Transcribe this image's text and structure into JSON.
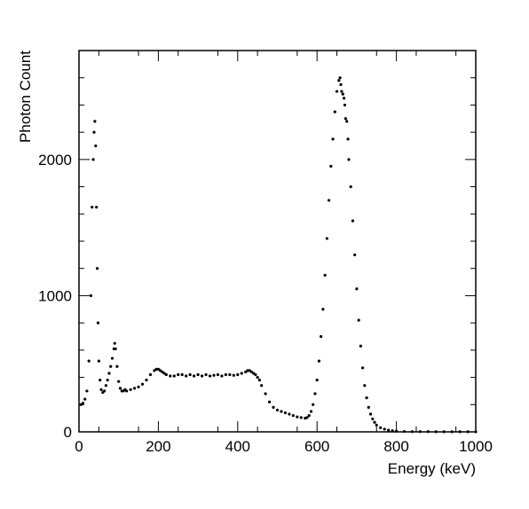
{
  "chart_data": {
    "type": "scatter",
    "title": "",
    "xlabel": "Energy (keV)",
    "ylabel": "Photon Count",
    "xlim": [
      0,
      1000
    ],
    "ylim": [
      0,
      2800
    ],
    "x_ticks": [
      0,
      200,
      400,
      600,
      800,
      1000
    ],
    "x_tick_labels": [
      "0",
      "200",
      "400",
      "600",
      "800",
      "1000"
    ],
    "y_ticks": [
      0,
      1000,
      2000
    ],
    "y_tick_labels": [
      "0",
      "1000",
      "2000"
    ],
    "grid": false,
    "legend": "none",
    "marker_color": "#000000",
    "series": [
      {
        "x": [
          5,
          10,
          15,
          20,
          25,
          30,
          33,
          36,
          38,
          40,
          42,
          44,
          46,
          48,
          50,
          53,
          56,
          60,
          64,
          68,
          72,
          76,
          80,
          84,
          88,
          90,
          92,
          96,
          100,
          104,
          108,
          112,
          116,
          120,
          130,
          140,
          150,
          160,
          170,
          180,
          190,
          195,
          200,
          205,
          210,
          215,
          220,
          230,
          240,
          250,
          260,
          270,
          280,
          290,
          300,
          310,
          320,
          330,
          340,
          350,
          360,
          370,
          380,
          390,
          400,
          410,
          420,
          425,
          430,
          435,
          440,
          445,
          450,
          455,
          460,
          470,
          480,
          490,
          500,
          510,
          520,
          530,
          540,
          550,
          560,
          570,
          575,
          580,
          585,
          590,
          595,
          600,
          605,
          610,
          615,
          620,
          625,
          630,
          635,
          640,
          645,
          650,
          655,
          658,
          660,
          662,
          665,
          668,
          670,
          672,
          675,
          678,
          680,
          685,
          690,
          695,
          700,
          705,
          710,
          715,
          720,
          725,
          730,
          735,
          740,
          745,
          750,
          760,
          770,
          780,
          790,
          800,
          820,
          840,
          860,
          880,
          900,
          920,
          940,
          960,
          980,
          1000
        ],
        "y": [
          200,
          210,
          240,
          300,
          520,
          1000,
          1650,
          2000,
          2200,
          2280,
          2100,
          1650,
          1200,
          800,
          520,
          380,
          310,
          290,
          300,
          340,
          380,
          430,
          480,
          540,
          610,
          650,
          610,
          480,
          370,
          320,
          300,
          300,
          310,
          300,
          310,
          320,
          330,
          350,
          380,
          420,
          450,
          460,
          460,
          450,
          440,
          430,
          420,
          410,
          410,
          420,
          420,
          410,
          420,
          410,
          420,
          410,
          420,
          410,
          415,
          420,
          410,
          420,
          420,
          415,
          420,
          430,
          440,
          450,
          450,
          440,
          430,
          420,
          400,
          380,
          340,
          280,
          220,
          180,
          160,
          150,
          140,
          130,
          120,
          110,
          105,
          100,
          105,
          120,
          150,
          200,
          280,
          380,
          520,
          700,
          900,
          1150,
          1420,
          1700,
          1950,
          2150,
          2350,
          2500,
          2580,
          2600,
          2550,
          2500,
          2480,
          2450,
          2400,
          2300,
          2280,
          2150,
          2000,
          1800,
          1550,
          1300,
          1050,
          820,
          630,
          470,
          340,
          250,
          180,
          130,
          95,
          70,
          50,
          30,
          20,
          12,
          8,
          5,
          3,
          2,
          2,
          2,
          1,
          1,
          1,
          1,
          1,
          1
        ]
      }
    ]
  }
}
